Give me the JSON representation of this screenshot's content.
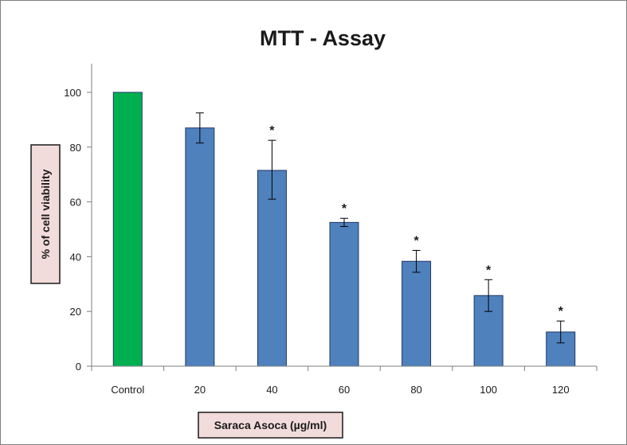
{
  "chart_data": {
    "type": "bar",
    "title": "MTT - Assay",
    "xlabel": "Saraca Asoca (µg/ml)",
    "ylabel": "% of cell viability",
    "categories": [
      "Control",
      "20",
      "40",
      "60",
      "80",
      "100",
      "120"
    ],
    "values": [
      100,
      87,
      71.5,
      52.5,
      38.3,
      25.8,
      12.5
    ],
    "error_plus": [
      0,
      5.5,
      11,
      1.5,
      4,
      5.8,
      4
    ],
    "error_minus": [
      0,
      5.5,
      10.5,
      1.5,
      4,
      5.8,
      4
    ],
    "significance": [
      "",
      "",
      "*",
      "*",
      "*",
      "*",
      "*"
    ],
    "bar_colors": [
      "#00b050",
      "#4f81bd",
      "#4f81bd",
      "#4f81bd",
      "#4f81bd",
      "#4f81bd",
      "#4f81bd"
    ],
    "bar_edge_color": "#1f3864",
    "label_box_color": "#f2dcdb",
    "ylim": [
      0,
      100
    ],
    "yticks": [
      0,
      20,
      40,
      60,
      80,
      100
    ],
    "grid": false,
    "legend": "none"
  }
}
